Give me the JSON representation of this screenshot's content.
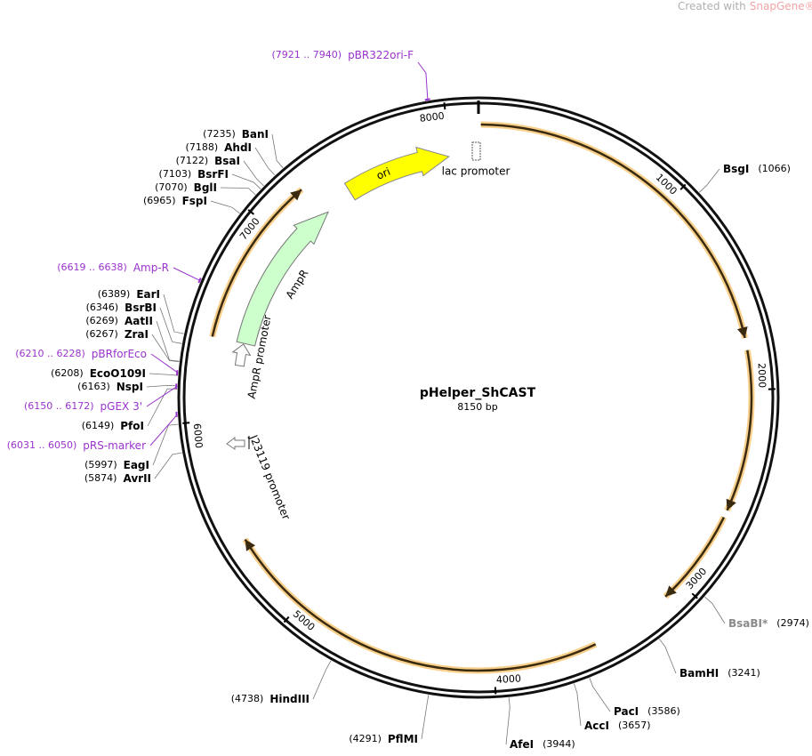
{
  "watermark": {
    "prefix": "Created with",
    "brand": "SnapGene®"
  },
  "plasmid": {
    "name": "pHelper_ShCAST",
    "length": "8150 bp"
  },
  "ticks": [
    1000,
    2000,
    3000,
    4000,
    5000,
    6000,
    7000,
    8000
  ],
  "features": [
    {
      "name": "ori"
    },
    {
      "name": "lac promoter"
    },
    {
      "name": "AmpR"
    },
    {
      "name": "AmpR promoter"
    },
    {
      "name": "J23119 promoter"
    }
  ],
  "sites": [
    {
      "name": "BanI",
      "position": "(7235)"
    },
    {
      "name": "AhdI",
      "position": "(7188)"
    },
    {
      "name": "BsaI",
      "position": "(7122)"
    },
    {
      "name": "BsrFI",
      "position": "(7103)"
    },
    {
      "name": "BglI",
      "position": "(7070)"
    },
    {
      "name": "FspI",
      "position": "(6965)"
    },
    {
      "name": "EarI",
      "position": "(6389)"
    },
    {
      "name": "BsrBI",
      "position": "(6346)"
    },
    {
      "name": "AatII",
      "position": "(6269)"
    },
    {
      "name": "ZraI",
      "position": "(6267)"
    },
    {
      "name": "EcoO109I",
      "position": "(6208)"
    },
    {
      "name": "NspI",
      "position": "(6163)"
    },
    {
      "name": "PfoI",
      "position": "(6149)"
    },
    {
      "name": "EagI",
      "position": "(5997)"
    },
    {
      "name": "AvrII",
      "position": "(5874)"
    },
    {
      "name": "BsgI",
      "position": "(1066)"
    },
    {
      "name": "BsaBI*",
      "position": "(2974)",
      "color": "#8a8a8a"
    },
    {
      "name": "BamHI",
      "position": "(3241)"
    },
    {
      "name": "PacI",
      "position": "(3586)"
    },
    {
      "name": "AccI",
      "position": "(3657)"
    },
    {
      "name": "AfeI",
      "position": "(3944)"
    },
    {
      "name": "PflMI",
      "position": "(4291)"
    },
    {
      "name": "HindIII",
      "position": "(4738)"
    }
  ],
  "primers": [
    {
      "name": "pBR322ori-F",
      "range": "(7921 .. 7940)"
    },
    {
      "name": "Amp-R",
      "range": "(6619 .. 6638)"
    },
    {
      "name": "pBRforEco",
      "range": "(6210 .. 6228)"
    },
    {
      "name": "pGEX 3'",
      "range": "(6150 .. 6172)"
    },
    {
      "name": "pRS-marker",
      "range": "(6031 .. 6050)"
    }
  ]
}
